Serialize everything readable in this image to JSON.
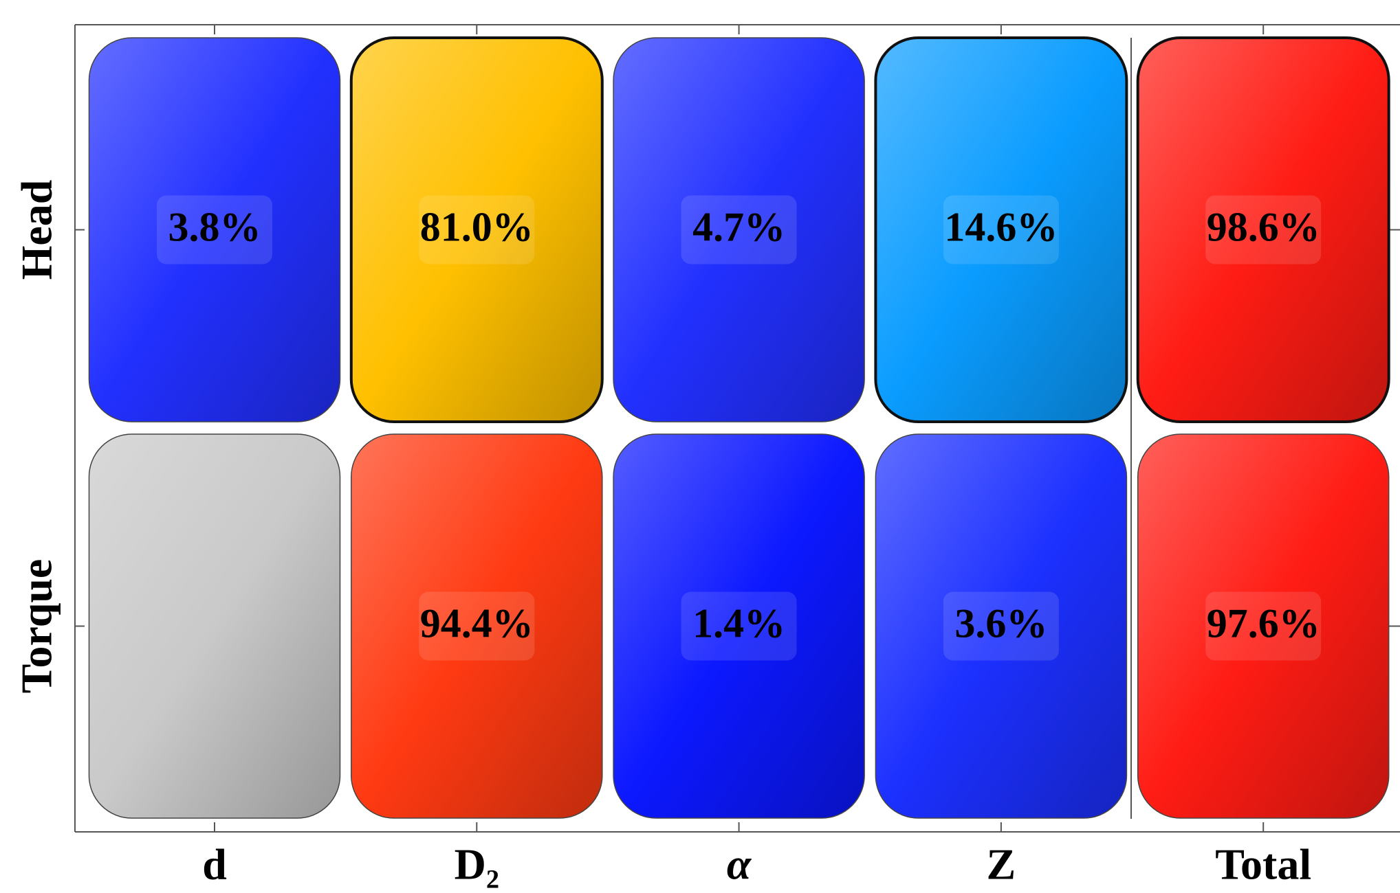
{
  "chart_data": {
    "type": "heatmap",
    "x_categories": [
      "d",
      "D₂",
      "α",
      "Z",
      "Total"
    ],
    "y_categories": [
      "Head",
      "Torque"
    ],
    "values": [
      [
        3.8,
        81.0,
        4.7,
        14.6,
        98.6
      ],
      [
        null,
        94.4,
        1.4,
        3.6,
        97.6
      ]
    ],
    "value_labels": [
      [
        "3.8%",
        "81.0%",
        "4.7%",
        "14.6%",
        "98.6%"
      ],
      [
        null,
        "94.4%",
        "1.4%",
        "3.6%",
        "97.6%"
      ]
    ],
    "colors": [
      [
        "#2230ff",
        "#ffc000",
        "#2230ff",
        "#0a9cff",
        "#ff1c14"
      ],
      [
        "#c9c9c9",
        "#ff3a12",
        "#0c18ff",
        "#1c30ff",
        "#ff1c14"
      ]
    ],
    "outlined": [
      [
        false,
        true,
        false,
        true,
        true
      ],
      [
        false,
        false,
        false,
        false,
        false
      ]
    ]
  }
}
